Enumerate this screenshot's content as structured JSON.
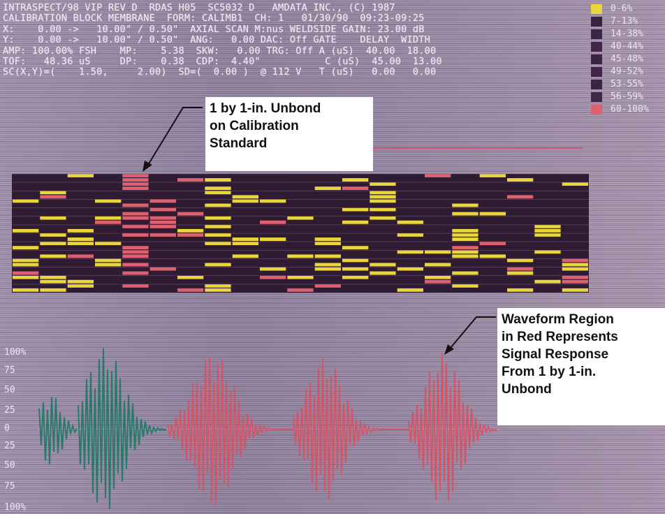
{
  "header": {
    "lines": [
      "INTRASPECT/98 VIP REV D  RDAS H05  SC5032 D   AMDATA INC., (C) 1987",
      "CALIBRATION BLOCK MEMBRANE  FORM: CALIMB1  CH: 1   01/30/90  09:23-09:25",
      "X:    0.00 ->   10.00\" / 0.50\"  AXIAL SCAN M:nus WELDSIDE GAIN: 23.00 dB",
      "Y:    0.00 ->   10.00\" / 0.50\"  ANG:   0.00 DAC: Off GATE    DELAY  WIDTH",
      "AMP: 100.00% FSH    MP:    5.38  SKW:   0.00 TRG: Off A (uS)  40.00  18.00",
      "TOF:   48.36 uS     DP:    0.38  CDP:  4.40\"           C (uS)  45.00  13.00",
      "SC(X,Y)=(    1.50,     2.00)  SD=(  0.00 )  @ 112 V   T (uS)   0.00   0.00"
    ]
  },
  "legend": [
    {
      "label": "0-6%",
      "color": "#e8d63a"
    },
    {
      "label": "7-13%",
      "color": "#3a2240"
    },
    {
      "label": "14-38%",
      "color": "#3e2446"
    },
    {
      "label": "40-44%",
      "color": "#41264a"
    },
    {
      "label": "45-48%",
      "color": "#3c2344"
    },
    {
      "label": "49-52%",
      "color": "#3f2548"
    },
    {
      "label": "53-55%",
      "color": "#3b2343"
    },
    {
      "label": "56-59%",
      "color": "#402649"
    },
    {
      "label": "60-100%",
      "color": "#e0606e"
    }
  ],
  "callouts": {
    "unbond": [
      "1 by 1-in. Unbond",
      "on Calibration",
      "Standard"
    ],
    "waveform": [
      "Waveform Region",
      "in Red Represents",
      "Signal Response",
      "From 1 by 1-in.",
      "Unbond"
    ]
  },
  "waveform": {
    "y_ticks": [
      "100%",
      "75",
      "50",
      "25",
      "0",
      "25",
      "50",
      "75",
      "100%"
    ],
    "colors": {
      "normal": "#2a7a6a",
      "unbond": "#d2566a"
    }
  },
  "colors": {
    "cscan_background": "#2f1c33",
    "cscan_yellow": "#e8d63a",
    "cscan_red": "#e0606e",
    "text": "#efe6ef"
  }
}
